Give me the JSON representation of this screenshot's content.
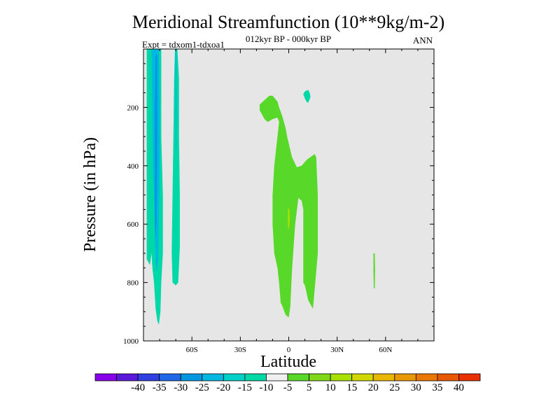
{
  "chart_data": {
    "type": "filled-contour",
    "title": "Meridional Streamfunction (10**9kg/m-2)",
    "subtitle_center": "012kyr BP - 000kyr BP",
    "subtitle_left": "Expt = tdxom1-tdxoa1",
    "subtitle_right": "ANN",
    "xlabel": "Latitude",
    "ylabel": "Pressure (in hPa)",
    "xlim": [
      -90,
      90
    ],
    "ylim": [
      1000,
      0
    ],
    "x_ticks": [
      {
        "value": -60,
        "label": "60S"
      },
      {
        "value": -30,
        "label": "30S"
      },
      {
        "value": 0,
        "label": "0"
      },
      {
        "value": 30,
        "label": "30N"
      },
      {
        "value": 60,
        "label": "60N"
      }
    ],
    "y_ticks": [
      {
        "value": 200,
        "label": "200"
      },
      {
        "value": 400,
        "label": "400"
      },
      {
        "value": 600,
        "label": "600"
      },
      {
        "value": 800,
        "label": "800"
      },
      {
        "value": 1000,
        "label": "1000"
      }
    ],
    "background_color": "#e6e6e6",
    "regions": [
      {
        "name": "sh-negative-cell",
        "level": -10,
        "color": "#00d8a8",
        "points": [
          [
            -88,
            0
          ],
          [
            -79,
            0
          ],
          [
            -79,
            80
          ],
          [
            -79,
            300
          ],
          [
            -78,
            500
          ],
          [
            -78,
            700
          ],
          [
            -79,
            800
          ],
          [
            -79.5,
            900
          ],
          [
            -80.5,
            945
          ],
          [
            -81.5,
            930
          ],
          [
            -82.5,
            890
          ],
          [
            -83.5,
            800
          ],
          [
            -84.5,
            750
          ],
          [
            -85,
            700
          ],
          [
            -86,
            740
          ],
          [
            -88,
            720
          ],
          [
            -88,
            400
          ],
          [
            -88,
            200
          ]
        ]
      },
      {
        "name": "sh-negative-core",
        "level": -15,
        "color": "#00b8e0",
        "points": [
          [
            -85,
            0
          ],
          [
            -80.5,
            0
          ],
          [
            -80,
            200
          ],
          [
            -80,
            400
          ],
          [
            -80.5,
            600
          ],
          [
            -81,
            720
          ],
          [
            -81.5,
            760
          ],
          [
            -82.5,
            740
          ],
          [
            -83,
            600
          ],
          [
            -84,
            400
          ],
          [
            -84.5,
            200
          ]
        ]
      },
      {
        "name": "sh-negative-inner",
        "level": -20,
        "color": "#0098e0",
        "points": [
          [
            -82.5,
            20
          ],
          [
            -81.5,
            20
          ],
          [
            -81.5,
            200
          ],
          [
            -81.5,
            400
          ],
          [
            -82,
            600
          ],
          [
            -82.5,
            650
          ],
          [
            -83,
            600
          ],
          [
            -83,
            400
          ],
          [
            -83,
            200
          ]
        ]
      },
      {
        "name": "sh-negative-strip",
        "level": -10,
        "color": "#00d8a8",
        "points": [
          [
            -70.5,
            0
          ],
          [
            -69,
            0
          ],
          [
            -68,
            100
          ],
          [
            -68,
            300
          ],
          [
            -67.5,
            500
          ],
          [
            -67.5,
            680
          ],
          [
            -68.5,
            800
          ],
          [
            -70,
            810
          ],
          [
            -72,
            800
          ],
          [
            -72.5,
            700
          ],
          [
            -72,
            500
          ],
          [
            -71.5,
            300
          ],
          [
            -71,
            100
          ]
        ]
      },
      {
        "name": "sh-negative-strip-core",
        "level": -15,
        "color": "#00b8e0",
        "points": [
          [
            -70.2,
            0
          ],
          [
            -69.6,
            0
          ],
          [
            -69.5,
            200
          ],
          [
            -69.7,
            350
          ],
          [
            -70.1,
            350
          ],
          [
            -70.2,
            200
          ]
        ]
      },
      {
        "name": "equatorial-positive-cell",
        "level": 5,
        "color": "#58d828",
        "points": [
          [
            -18,
            190
          ],
          [
            -14,
            170
          ],
          [
            -12,
            160
          ],
          [
            -10,
            160
          ],
          [
            -7,
            180
          ],
          [
            -6,
            200
          ],
          [
            -4,
            230
          ],
          [
            -3,
            250
          ],
          [
            -2,
            270
          ],
          [
            -1,
            300
          ],
          [
            2,
            370
          ],
          [
            5,
            405
          ],
          [
            8,
            400
          ],
          [
            11,
            380
          ],
          [
            16,
            360
          ],
          [
            17,
            370
          ],
          [
            18,
            500
          ],
          [
            18,
            700
          ],
          [
            15,
            890
          ],
          [
            14,
            880
          ],
          [
            12,
            860
          ],
          [
            10,
            810
          ],
          [
            9,
            800
          ],
          [
            9,
            720
          ],
          [
            9,
            550
          ],
          [
            8,
            520
          ],
          [
            6,
            510
          ],
          [
            4,
            600
          ],
          [
            2,
            760
          ],
          [
            1,
            880
          ],
          [
            0,
            920
          ],
          [
            -2,
            910
          ],
          [
            -4,
            880
          ],
          [
            -5,
            870
          ],
          [
            -6,
            800
          ],
          [
            -7,
            750
          ],
          [
            -9,
            700
          ],
          [
            -10,
            600
          ],
          [
            -10,
            500
          ],
          [
            -9,
            400
          ],
          [
            -7,
            300
          ],
          [
            -6,
            250
          ],
          [
            -7,
            235
          ],
          [
            -10,
            240
          ],
          [
            -13,
            250
          ],
          [
            -15,
            240
          ],
          [
            -18,
            210
          ]
        ]
      },
      {
        "name": "equatorial-positive-blob",
        "level": 10,
        "color": "#a8e000",
        "points": [
          [
            -0.2,
            540
          ],
          [
            0.4,
            550
          ],
          [
            0.6,
            580
          ],
          [
            0.3,
            610
          ],
          [
            -0.2,
            620
          ],
          [
            -0.6,
            600
          ],
          [
            -0.6,
            560
          ]
        ]
      },
      {
        "name": "nh-upper-negative-blob",
        "level": -10,
        "color": "#00d8a8",
        "points": [
          [
            10,
            145
          ],
          [
            12,
            140
          ],
          [
            13,
            150
          ],
          [
            13.5,
            165
          ],
          [
            12,
            185
          ],
          [
            11,
            180
          ],
          [
            10,
            170
          ],
          [
            9,
            155
          ]
        ]
      },
      {
        "name": "nh-lower-positive-blob",
        "level": 5,
        "color": "#58d828",
        "points": [
          [
            52.5,
            700
          ],
          [
            53.3,
            700
          ],
          [
            53.5,
            760
          ],
          [
            53.3,
            820
          ],
          [
            52.7,
            820
          ],
          [
            52.5,
            760
          ]
        ]
      }
    ],
    "colorbar": {
      "colors": [
        "#8800e8",
        "#5a18d8",
        "#3040e0",
        "#2068e8",
        "#0098e0",
        "#00b8e0",
        "#00d0c8",
        "#00d8a8",
        "#f0f0f0",
        "#58d828",
        "#80d818",
        "#a8e000",
        "#d0d800",
        "#e8b800",
        "#e89800",
        "#e87800",
        "#e85800",
        "#e83000"
      ],
      "labels": [
        "-40",
        "-35",
        "-30",
        "-25",
        "-20",
        "-15",
        "-10",
        "-5",
        "5",
        "10",
        "15",
        "20",
        "25",
        "30",
        "35",
        "40"
      ]
    }
  }
}
